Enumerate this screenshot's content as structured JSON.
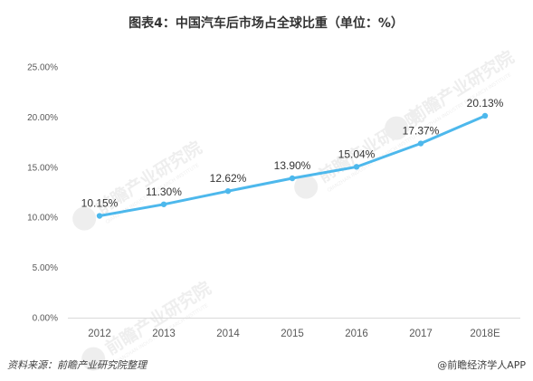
{
  "chart_data": {
    "type": "line",
    "title": "图表4：中国汽车后市场占全球比重（单位：%）",
    "categories": [
      "2012",
      "2013",
      "2014",
      "2015",
      "2016",
      "2017",
      "2018E"
    ],
    "series": [
      {
        "values": [
          10.15,
          11.3,
          12.62,
          13.9,
          15.04,
          17.37,
          20.13
        ],
        "labels": [
          "10.15%",
          "11.30%",
          "12.62%",
          "13.90%",
          "15.04%",
          "17.37%",
          "20.13%"
        ]
      }
    ],
    "yticks": [
      "0.00%",
      "5.00%",
      "10.00%",
      "15.00%",
      "20.00%",
      "25.00%"
    ],
    "ylim": [
      0,
      25
    ],
    "grid": false,
    "xlabel": "",
    "ylabel": ""
  },
  "colors": {
    "line": "#4DB8EC",
    "axis": "#D9D9D9",
    "text": "#595959"
  },
  "footer": {
    "source": "资料来源：前瞻产业研究院整理",
    "brand": "@前瞻经济学人APP"
  },
  "watermark": {
    "text": "前瞻产业研究院",
    "sub": "QIANZHAN INDUSTRY RESEARCH INSTITUTE"
  }
}
